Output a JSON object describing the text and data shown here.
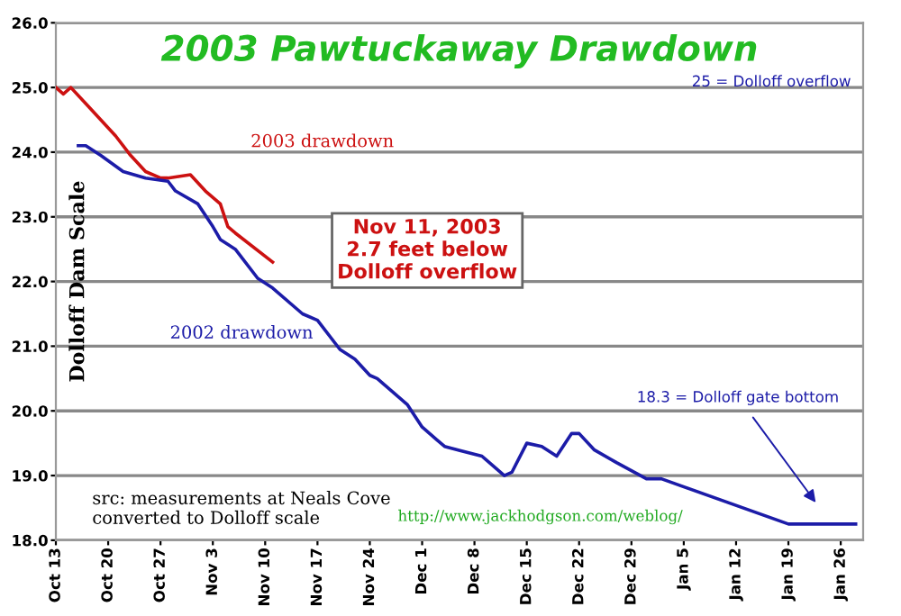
{
  "chart_data": {
    "type": "line",
    "title": "2003 Pawtuckaway Drawdown",
    "ylabel": "Dolloff Dam Scale",
    "series": [
      {
        "name": "2003 drawdown",
        "color": "#cc1111",
        "x": [
          "2002-10-13",
          "2002-10-14",
          "2002-10-15",
          "2002-10-17",
          "2002-10-19",
          "2002-10-21",
          "2002-10-23",
          "2002-10-25",
          "2002-10-27",
          "2002-10-28",
          "2002-10-31",
          "2002-11-02",
          "2002-11-04",
          "2002-11-05",
          "2002-11-06",
          "2002-11-11"
        ],
        "values": [
          25.0,
          24.9,
          25.0,
          24.75,
          24.5,
          24.25,
          23.95,
          23.7,
          23.6,
          23.6,
          23.65,
          23.4,
          23.2,
          22.85,
          22.75,
          22.3
        ]
      },
      {
        "name": "2002 drawdown",
        "color": "#1c1ca8",
        "x": [
          "2002-10-16",
          "2002-10-17",
          "2002-10-19",
          "2002-10-22",
          "2002-10-25",
          "2002-10-28",
          "2002-10-29",
          "2002-11-01",
          "2002-11-03",
          "2002-11-04",
          "2002-11-06",
          "2002-11-09",
          "2002-11-11",
          "2002-11-15",
          "2002-11-17",
          "2002-11-20",
          "2002-11-22",
          "2002-11-24",
          "2002-11-25",
          "2002-11-29",
          "2002-12-01",
          "2002-12-03",
          "2002-12-04",
          "2002-12-09",
          "2002-12-12",
          "2002-12-13",
          "2002-12-15",
          "2002-12-17",
          "2002-12-19",
          "2002-12-21",
          "2002-12-22",
          "2002-12-24",
          "2002-12-27",
          "2002-12-31",
          "2003-01-02",
          "2003-01-19",
          "2003-01-28"
        ],
        "values": [
          24.1,
          24.1,
          23.95,
          23.7,
          23.6,
          23.55,
          23.4,
          23.2,
          22.85,
          22.65,
          22.5,
          22.05,
          21.9,
          21.5,
          21.4,
          20.95,
          20.8,
          20.55,
          20.5,
          20.1,
          19.75,
          19.55,
          19.45,
          19.3,
          19.0,
          19.05,
          19.5,
          19.45,
          19.3,
          19.65,
          19.65,
          19.4,
          19.2,
          18.95,
          18.95,
          18.25,
          18.25
        ]
      }
    ],
    "xlim": [
      "2002-10-13",
      "2003-01-29"
    ],
    "xticks": [
      {
        "value": "2002-10-13",
        "label": "Oct 13"
      },
      {
        "value": "2002-10-20",
        "label": "Oct 20"
      },
      {
        "value": "2002-10-27",
        "label": "Oct 27"
      },
      {
        "value": "2002-11-03",
        "label": "Nov 3"
      },
      {
        "value": "2002-11-10",
        "label": "Nov 10"
      },
      {
        "value": "2002-11-17",
        "label": "Nov 17"
      },
      {
        "value": "2002-11-24",
        "label": "Nov 24"
      },
      {
        "value": "2002-12-01",
        "label": "Dec 1"
      },
      {
        "value": "2002-12-08",
        "label": "Dec 8"
      },
      {
        "value": "2002-12-15",
        "label": "Dec 15"
      },
      {
        "value": "2002-12-22",
        "label": "Dec 22"
      },
      {
        "value": "2002-12-29",
        "label": "Dec 29"
      },
      {
        "value": "2003-01-05",
        "label": "Jan 5"
      },
      {
        "value": "2003-01-12",
        "label": "Jan 12"
      },
      {
        "value": "2003-01-19",
        "label": "Jan 19"
      },
      {
        "value": "2003-01-26",
        "label": "Jan 26"
      }
    ],
    "ylim": [
      18,
      26
    ],
    "yticks": [
      {
        "value": 18,
        "label": "18.0"
      },
      {
        "value": 19,
        "label": "19.0"
      },
      {
        "value": 20,
        "label": "20.0"
      },
      {
        "value": 21,
        "label": "21.0"
      },
      {
        "value": 22,
        "label": "22.0"
      },
      {
        "value": 23,
        "label": "23.0"
      },
      {
        "value": 24,
        "label": "24.0"
      },
      {
        "value": 25,
        "label": "25.0"
      },
      {
        "value": 26,
        "label": "26.0"
      }
    ],
    "grid": "y",
    "legend": false,
    "annotations": [
      "Nov 11, 2003\n2.7 feet below\nDolloff overflow",
      "25 = Dolloff overflow",
      "18.3 = Dolloff gate bottom",
      "src: measurements at Neals Cove\nconverted to Dolloff scale",
      "http://www.jackhodgson.com/weblog/"
    ]
  }
}
